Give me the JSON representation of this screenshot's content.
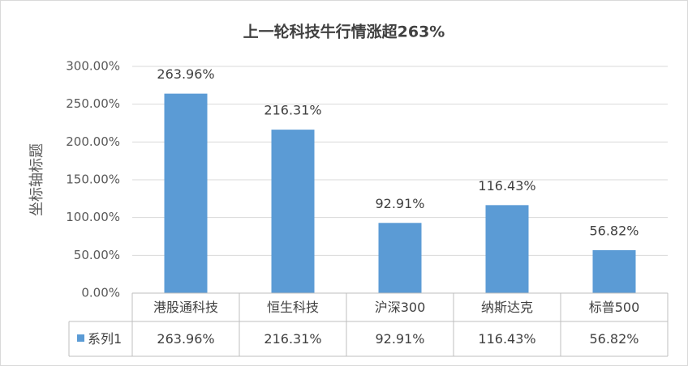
{
  "chart_data": {
    "type": "bar",
    "title": "上一轮科技牛行情涨超263%",
    "y_axis_label": "坐标轴标题",
    "categories": [
      "港股通科技",
      "恒生科技",
      "沪深300",
      "纳斯达克",
      "标普500"
    ],
    "series": [
      {
        "name": "系列1",
        "color": "#5b9bd5",
        "values": [
          263.96,
          216.31,
          92.91,
          116.43,
          56.82
        ],
        "value_labels": [
          "263.96%",
          "216.31%",
          "92.91%",
          "116.43%",
          "56.82%"
        ]
      }
    ],
    "ylim": [
      0,
      300
    ],
    "yticks": [
      {
        "value": 0,
        "label": "0.00%"
      },
      {
        "value": 50,
        "label": "50.00%"
      },
      {
        "value": 100,
        "label": "100.00%"
      },
      {
        "value": 150,
        "label": "150.00%"
      },
      {
        "value": 200,
        "label": "200.00%"
      },
      {
        "value": 250,
        "label": "250.00%"
      },
      {
        "value": 300,
        "label": "300.00%"
      }
    ],
    "grid": true,
    "data_table": true
  }
}
